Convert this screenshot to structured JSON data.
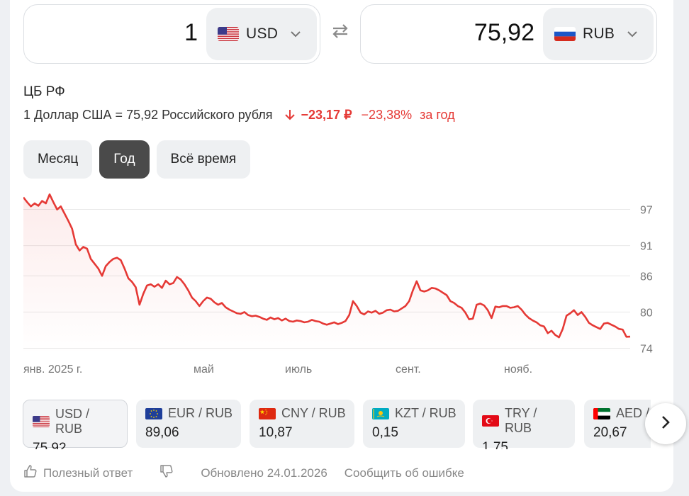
{
  "converter": {
    "from_amount": "1",
    "from_code": "USD",
    "to_amount": "75,92",
    "to_code": "RUB"
  },
  "source": "ЦБ РФ",
  "rate": {
    "text": "1 Доллар США = 75,92 Российского рубля",
    "change_abs": "−23,17 ₽",
    "change_pct": "−23,38%",
    "period": "за год"
  },
  "tabs": [
    {
      "label": "Месяц",
      "active": false
    },
    {
      "label": "Год",
      "active": true
    },
    {
      "label": "Всё время",
      "active": false
    }
  ],
  "chart_data": {
    "type": "line",
    "ylim": [
      73,
      100
    ],
    "y_ticks": [
      "97",
      "91",
      "86",
      "80",
      "74"
    ],
    "y_tick_values": [
      97,
      91,
      86,
      80,
      74
    ],
    "x_ticks": [
      "янв. 2025 г.",
      "май",
      "июль",
      "сент.",
      "нояб."
    ],
    "color": "#e53935",
    "series": [
      {
        "values": [
          99.0,
          98.2,
          97.5,
          98.0,
          97.6,
          98.4,
          98.0,
          99.5,
          98.2,
          97.0,
          97.5,
          96.3,
          95.1,
          93.8,
          91.2,
          90.2,
          90.8,
          90.5,
          88.8,
          88.0,
          87.2,
          86.0,
          87.6,
          88.3,
          88.8,
          89.0,
          88.6,
          87.2,
          85.6,
          85.0,
          84.1,
          81.2,
          83.0,
          84.4,
          84.6,
          84.2,
          84.6,
          84.0,
          85.2,
          84.6,
          84.8,
          85.8,
          85.4,
          84.6,
          83.6,
          82.4,
          81.8,
          81.0,
          81.8,
          82.4,
          82.2,
          81.6,
          81.2,
          81.5,
          80.8,
          80.4,
          80.1,
          79.8,
          79.7,
          80.0,
          79.5,
          79.3,
          79.4,
          79.2,
          78.9,
          78.7,
          79.1,
          78.8,
          79.0,
          78.6,
          78.9,
          78.5,
          78.4,
          78.6,
          78.5,
          78.3,
          78.4,
          78.7,
          78.5,
          78.4,
          78.1,
          77.9,
          78.1,
          78.3,
          78.0,
          78.2,
          78.5,
          79.5,
          81.8,
          81.0,
          79.9,
          79.6,
          80.1,
          79.9,
          80.2,
          79.7,
          79.9,
          80.3,
          80.4,
          80.1,
          80.2,
          80.6,
          81.0,
          81.8,
          83.6,
          85.1,
          83.6,
          83.4,
          83.6,
          84.0,
          83.9,
          83.6,
          83.2,
          82.8,
          81.8,
          81.5,
          81.0,
          80.7,
          79.9,
          78.8,
          78.9,
          81.2,
          81.4,
          81.1,
          80.3,
          79.0,
          80.9,
          80.8,
          81.0,
          81.0,
          80.7,
          80.8,
          81.0,
          80.4,
          79.6,
          79.0,
          78.6,
          78.3,
          77.8,
          77.6,
          76.5,
          76.9,
          76.2,
          75.8,
          77.2,
          79.4,
          79.8,
          80.3,
          79.5,
          80.0,
          79.2,
          78.2,
          77.8,
          77.5,
          77.2,
          78.1,
          78.2,
          77.9,
          77.6,
          77.2,
          77.1,
          75.9,
          75.92
        ]
      }
    ]
  },
  "pairs": [
    {
      "name": "USD / RUB",
      "value": "75,92",
      "flag": "us",
      "selected": true
    },
    {
      "name": "EUR / RUB",
      "value": "89,06",
      "flag": "eu",
      "selected": false
    },
    {
      "name": "CNY / RUB",
      "value": "10,87",
      "flag": "cn",
      "selected": false
    },
    {
      "name": "KZT / RUB",
      "value": "0,15",
      "flag": "kz",
      "selected": false
    },
    {
      "name": "TRY / RUB",
      "value": "1,75",
      "flag": "tr",
      "selected": false
    },
    {
      "name": "AED / RUB",
      "value": "20,67",
      "flag": "ae",
      "selected": false
    }
  ],
  "footer": {
    "helpful": "Полезный ответ",
    "updated": "Обновлено 24.01.2026",
    "report": "Сообщить об ошибке"
  }
}
